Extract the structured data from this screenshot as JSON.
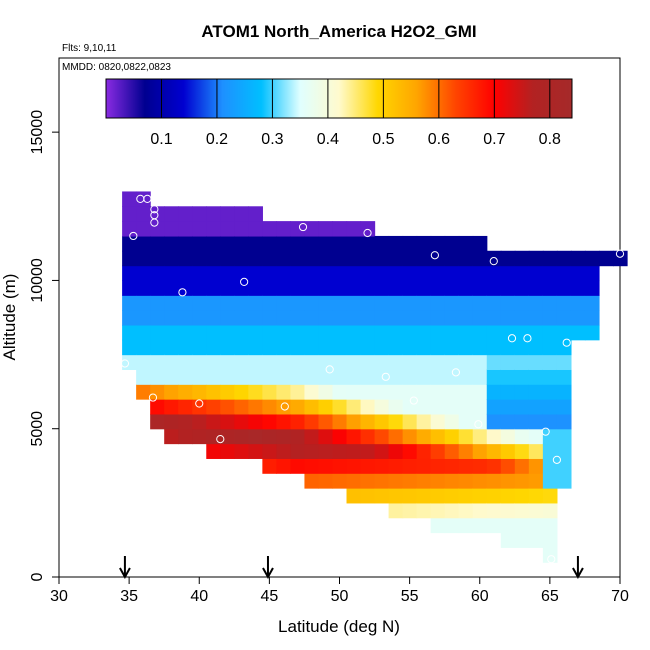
{
  "chart_data": {
    "type": "heatmap",
    "title": "ATOM1 North_America H2O2_GMI",
    "annotations": [
      "Flts: 9,10,11",
      "MMDD: 0820,0822,0823"
    ],
    "xlabel": "Latitude (deg N)",
    "ylabel": "Altitude (m)",
    "xlim": [
      30,
      70
    ],
    "ylim": [
      0,
      17500
    ],
    "xticks": [
      "30",
      "35",
      "40",
      "45",
      "50",
      "55",
      "60",
      "65",
      "70"
    ],
    "xtick_values": [
      30,
      35,
      40,
      45,
      50,
      55,
      60,
      65,
      70
    ],
    "yticks": [
      "0",
      "5000",
      "10000",
      "15000"
    ],
    "ytick_values": [
      0,
      5000,
      10000,
      15000
    ],
    "colorbar": {
      "ticks": [
        "0.1",
        "0.2",
        "0.3",
        "0.4",
        "0.5",
        "0.6",
        "0.7",
        "0.8"
      ],
      "tick_values": [
        0.1,
        0.2,
        0.3,
        0.4,
        0.5,
        0.6,
        0.7,
        0.8
      ],
      "range": [
        0.0,
        0.84
      ],
      "colors": [
        "#8a2be2",
        "#000090",
        "#0000d0",
        "#1e90ff",
        "#00bfff",
        "#e0ffff",
        "#fffacd",
        "#ffd700",
        "#ffa500",
        "#ff4500",
        "#ff0000",
        "#b22222",
        "#a52a2a"
      ]
    },
    "grid_bin": {
      "lat_deg": 1.0,
      "alt_m": 500
    },
    "column_extents": [
      {
        "lat": 35,
        "alt": [
          7000,
          13000
        ]
      },
      {
        "lat": 36,
        "alt": [
          6000,
          13000
        ]
      },
      {
        "lat": 37,
        "alt": [
          5000,
          12500
        ]
      },
      {
        "lat": 38,
        "alt": [
          4500,
          12500
        ]
      },
      {
        "lat": 39,
        "alt": [
          4500,
          12500
        ]
      },
      {
        "lat": 40,
        "alt": [
          4500,
          12500
        ]
      },
      {
        "lat": 41,
        "alt": [
          4000,
          12500
        ]
      },
      {
        "lat": 42,
        "alt": [
          4000,
          12500
        ]
      },
      {
        "lat": 43,
        "alt": [
          4000,
          12500
        ]
      },
      {
        "lat": 44,
        "alt": [
          4000,
          12500
        ]
      },
      {
        "lat": 45,
        "alt": [
          3500,
          12000
        ]
      },
      {
        "lat": 46,
        "alt": [
          3500,
          12000
        ]
      },
      {
        "lat": 47,
        "alt": [
          3500,
          12000
        ]
      },
      {
        "lat": 48,
        "alt": [
          3000,
          12000
        ]
      },
      {
        "lat": 49,
        "alt": [
          3000,
          12000
        ]
      },
      {
        "lat": 50,
        "alt": [
          3000,
          12000
        ]
      },
      {
        "lat": 51,
        "alt": [
          2500,
          12000
        ]
      },
      {
        "lat": 52,
        "alt": [
          2500,
          12000
        ]
      },
      {
        "lat": 53,
        "alt": [
          2500,
          11500
        ]
      },
      {
        "lat": 54,
        "alt": [
          2000,
          11500
        ]
      },
      {
        "lat": 55,
        "alt": [
          2000,
          11500
        ]
      },
      {
        "lat": 56,
        "alt": [
          2000,
          11500
        ]
      },
      {
        "lat": 57,
        "alt": [
          1500,
          11500
        ]
      },
      {
        "lat": 58,
        "alt": [
          1500,
          11500
        ]
      },
      {
        "lat": 59,
        "alt": [
          1500,
          11500
        ]
      },
      {
        "lat": 60,
        "alt": [
          1500,
          11500
        ]
      },
      {
        "lat": 61,
        "alt": [
          1500,
          11000
        ]
      },
      {
        "lat": 62,
        "alt": [
          1000,
          11000
        ]
      },
      {
        "lat": 63,
        "alt": [
          1000,
          11000
        ]
      },
      {
        "lat": 64,
        "alt": [
          1000,
          11000
        ]
      },
      {
        "lat": 65,
        "alt": [
          500,
          11000
        ]
      },
      {
        "lat": 66,
        "alt": [
          3000,
          11000
        ]
      },
      {
        "lat": 67,
        "alt": [
          8000,
          11000
        ]
      },
      {
        "lat": 68,
        "alt": [
          8000,
          11000
        ]
      },
      {
        "lat": 69,
        "alt": [
          10500,
          11000
        ]
      },
      {
        "lat": 70,
        "alt": [
          10500,
          11000
        ]
      }
    ],
    "flight_track": [
      {
        "lat": 35.8,
        "alt": 12750
      },
      {
        "lat": 36.3,
        "alt": 12750
      },
      {
        "lat": 36.8,
        "alt": 12400
      },
      {
        "lat": 36.8,
        "alt": 12200
      },
      {
        "lat": 36.8,
        "alt": 11950
      },
      {
        "lat": 35.3,
        "alt": 11500
      },
      {
        "lat": 47.4,
        "alt": 11800
      },
      {
        "lat": 52.0,
        "alt": 11600
      },
      {
        "lat": 56.8,
        "alt": 10850
      },
      {
        "lat": 61.0,
        "alt": 10650
      },
      {
        "lat": 70.0,
        "alt": 10900
      },
      {
        "lat": 43.2,
        "alt": 9950
      },
      {
        "lat": 38.8,
        "alt": 9600
      },
      {
        "lat": 62.3,
        "alt": 8050
      },
      {
        "lat": 63.4,
        "alt": 8050
      },
      {
        "lat": 66.2,
        "alt": 7900
      },
      {
        "lat": 34.7,
        "alt": 7200
      },
      {
        "lat": 49.3,
        "alt": 7000
      },
      {
        "lat": 58.3,
        "alt": 6900
      },
      {
        "lat": 53.3,
        "alt": 6750
      },
      {
        "lat": 36.7,
        "alt": 6050
      },
      {
        "lat": 55.3,
        "alt": 5950
      },
      {
        "lat": 40.0,
        "alt": 5850
      },
      {
        "lat": 46.1,
        "alt": 5750
      },
      {
        "lat": 59.9,
        "alt": 5150
      },
      {
        "lat": 64.7,
        "alt": 4900
      },
      {
        "lat": 41.5,
        "alt": 4650
      },
      {
        "lat": 65.5,
        "alt": 3950
      },
      {
        "lat": 65.1,
        "alt": 600
      }
    ],
    "flight_arrows_lat": [
      34.7,
      44.9,
      67.0
    ]
  }
}
